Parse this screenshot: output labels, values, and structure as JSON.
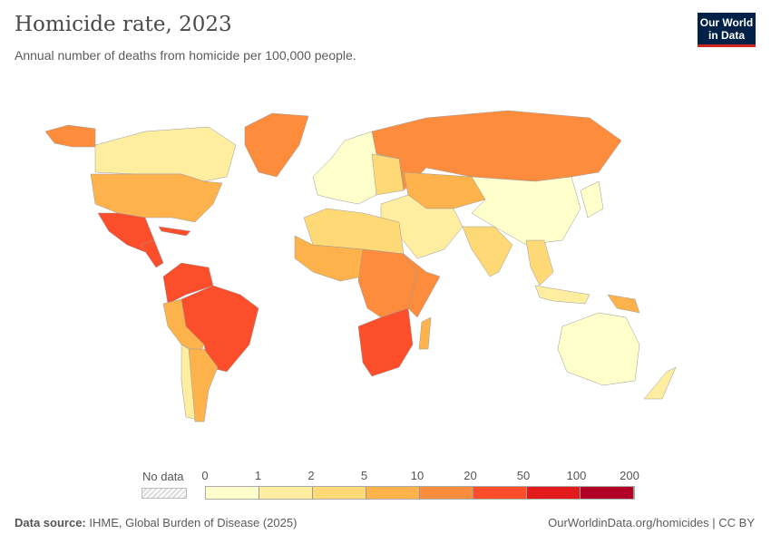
{
  "header": {
    "title": "Homicide rate, 2023",
    "subtitle": "Annual number of deaths from homicide per 100,000 people.",
    "logo": "Our World in Data"
  },
  "legend": {
    "no_data_label": "No data",
    "ticks": [
      "0",
      "1",
      "2",
      "5",
      "10",
      "20",
      "50",
      "100",
      "200"
    ],
    "colors": [
      "#ffffcc",
      "#ffeda0",
      "#fed976",
      "#feb24c",
      "#fd8d3c",
      "#fc4e2a",
      "#e31a1c",
      "#b10026"
    ],
    "no_data_color": "#e0e0e0"
  },
  "map_regions": [
    {
      "region": "Canada",
      "bin": 1
    },
    {
      "region": "Alaska",
      "bin": 4
    },
    {
      "region": "Greenland",
      "bin": 4
    },
    {
      "region": "United States",
      "bin": 3
    },
    {
      "region": "Mexico",
      "bin": 5
    },
    {
      "region": "Central America",
      "bin": 5
    },
    {
      "region": "Caribbean",
      "bin": 5
    },
    {
      "region": "Colombia/Venezuela",
      "bin": 5
    },
    {
      "region": "Brazil",
      "bin": 5
    },
    {
      "region": "Peru/Bolivia",
      "bin": 3
    },
    {
      "region": "Argentina",
      "bin": 3
    },
    {
      "region": "Chile",
      "bin": 1
    },
    {
      "region": "Europe",
      "bin": 0
    },
    {
      "region": "Eastern Europe",
      "bin": 2
    },
    {
      "region": "Russia",
      "bin": 4
    },
    {
      "region": "Central Asia",
      "bin": 3
    },
    {
      "region": "China",
      "bin": 0
    },
    {
      "region": "Japan/Korea",
      "bin": 0
    },
    {
      "region": "Middle East",
      "bin": 1
    },
    {
      "region": "India",
      "bin": 2
    },
    {
      "region": "Southeast Asia",
      "bin": 2
    },
    {
      "region": "North Africa",
      "bin": 2
    },
    {
      "region": "West Africa",
      "bin": 3
    },
    {
      "region": "Central Africa",
      "bin": 4
    },
    {
      "region": "East Africa",
      "bin": 4
    },
    {
      "region": "Southern Africa",
      "bin": 5
    },
    {
      "region": "Madagascar",
      "bin": 3
    },
    {
      "region": "Australia",
      "bin": 0
    },
    {
      "region": "New Zealand",
      "bin": 1
    },
    {
      "region": "Papua New Guinea",
      "bin": 3
    },
    {
      "region": "Indonesia",
      "bin": 1
    }
  ],
  "footer": {
    "source_label": "Data source:",
    "source": "IHME, Global Burden of Disease (2025)",
    "link": "OurWorldinData.org/homicides | CC BY"
  }
}
